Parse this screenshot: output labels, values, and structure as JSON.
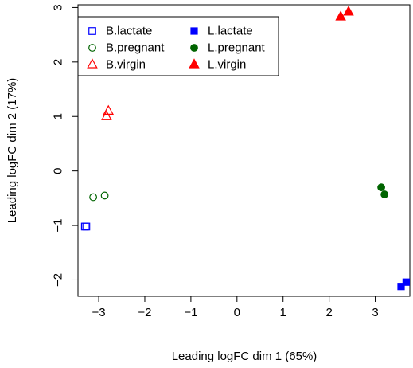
{
  "chart_data": {
    "type": "scatter",
    "title": "",
    "xlabel": "Leading logFC dim 1 (65%)",
    "ylabel": "Leading logFC dim 2 (17%)",
    "xlim": [
      -3.45,
      3.75
    ],
    "ylim": [
      -2.3,
      3.05
    ],
    "x_ticks": [
      -3,
      -2,
      -1,
      0,
      1,
      2,
      3
    ],
    "y_ticks": [
      -2,
      -1,
      0,
      1,
      2,
      3
    ],
    "x_tick_labels": [
      "−3",
      "−2",
      "−1",
      "0",
      "1",
      "2",
      "3"
    ],
    "y_tick_labels": [
      "−2",
      "−1",
      "0",
      "1",
      "2",
      "3"
    ],
    "grid": false,
    "legend_placement": "top-left",
    "series": [
      {
        "name": "B.lactate",
        "color": "#0000ff",
        "marker": "square-open",
        "points": [
          {
            "x": -3.3,
            "y": -1.02
          },
          {
            "x": -3.27,
            "y": -1.02
          }
        ]
      },
      {
        "name": "B.pregnant",
        "color": "#006400",
        "marker": "circle-open",
        "points": [
          {
            "x": -3.12,
            "y": -0.48
          },
          {
            "x": -2.87,
            "y": -0.45
          }
        ]
      },
      {
        "name": "B.virgin",
        "color": "#ff0000",
        "marker": "triangle-open",
        "points": [
          {
            "x": -2.83,
            "y": 1.0
          },
          {
            "x": -2.79,
            "y": 1.1
          }
        ]
      },
      {
        "name": "L.lactate",
        "color": "#0000ff",
        "marker": "square-filled",
        "points": [
          {
            "x": 3.56,
            "y": -2.12
          },
          {
            "x": 3.67,
            "y": -2.04
          }
        ]
      },
      {
        "name": "L.pregnant",
        "color": "#006400",
        "marker": "circle-filled",
        "points": [
          {
            "x": 3.13,
            "y": -0.3
          },
          {
            "x": 3.2,
            "y": -0.43
          }
        ]
      },
      {
        "name": "L.virgin",
        "color": "#ff0000",
        "marker": "triangle-filled",
        "points": [
          {
            "x": 2.25,
            "y": 2.83
          },
          {
            "x": 2.42,
            "y": 2.92
          }
        ]
      }
    ]
  }
}
